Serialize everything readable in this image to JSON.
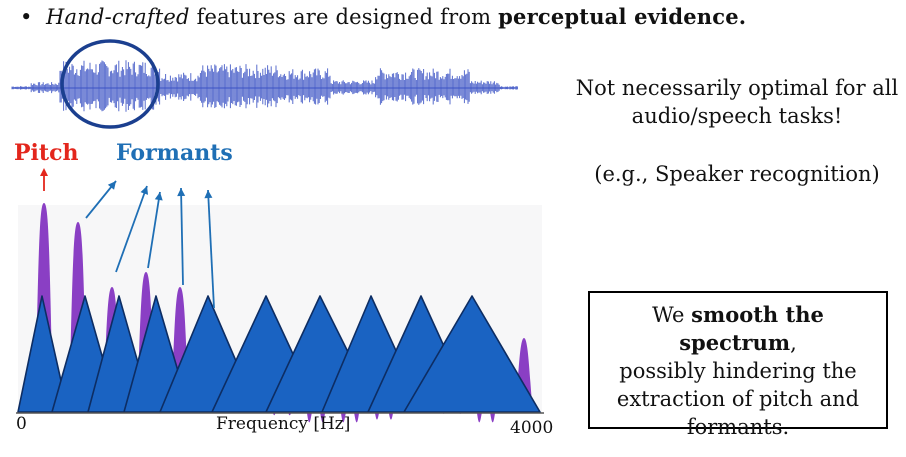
{
  "bullet": {
    "marker": "•",
    "italic": "Hand-crafted",
    "middle": " features  are designed from ",
    "bold": "perceptual evidence."
  },
  "side_notes": {
    "line1": "Not necessarily optimal for all",
    "line2": "audio/speech tasks!",
    "example": "(e.g., Speaker recognition)"
  },
  "box": {
    "pre": "We ",
    "bold": "smooth the spectrum",
    "post": ",",
    "line2": "possibly hindering the",
    "line3": "extraction of pitch and",
    "line4": "formants."
  },
  "labels": {
    "pitch": "Pitch",
    "formants": "Formants",
    "x_min": "0",
    "x_label": "Frequency [Hz]",
    "x_max": "4000"
  },
  "colors": {
    "pitch": "#e3261c",
    "formants": "#1f6fb5",
    "spectrum": "#8a3fc4",
    "filters": "#1a63c2",
    "waveform": "#3b52c4"
  }
}
